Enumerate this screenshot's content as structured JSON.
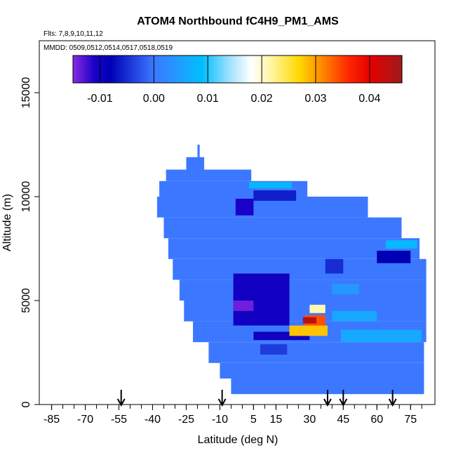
{
  "chart_data": {
    "type": "heatmap",
    "title": "ATOM4 Northbound fC4H9_PM1_AMS",
    "annotations": [
      "Flts: 7,8,9,10,11,12",
      "MMDD: 0509,0512,0514,0517,0518,0519"
    ],
    "xlabel": "Latitude (deg N)",
    "ylabel": "Altitude (m)",
    "xlim": [
      -88,
      84
    ],
    "ylim": [
      0,
      17500
    ],
    "x_ticks": [
      -85,
      -70,
      -55,
      -40,
      -25,
      -10,
      5,
      15,
      30,
      45,
      60,
      75
    ],
    "y_ticks": [
      0,
      5000,
      10000,
      15000
    ],
    "colorbar": {
      "range": [
        -0.015,
        0.046
      ],
      "ticks": [
        -0.01,
        0.0,
        0.01,
        0.02,
        0.03,
        0.04
      ],
      "tick_labels": [
        "-0.01",
        "0.00",
        "0.01",
        "0.02",
        "0.03",
        "0.04"
      ],
      "stops": [
        {
          "value": -0.015,
          "color": "#8a2be2"
        },
        {
          "value": -0.011,
          "color": "#1a00c8"
        },
        {
          "value": -0.008,
          "color": "#0000b4"
        },
        {
          "value": -0.004,
          "color": "#1e3cdc"
        },
        {
          "value": 0.0,
          "color": "#3c78ff"
        },
        {
          "value": 0.005,
          "color": "#1ea0ff"
        },
        {
          "value": 0.009,
          "color": "#00bfff"
        },
        {
          "value": 0.014,
          "color": "#a0e0ff"
        },
        {
          "value": 0.018,
          "color": "#ffffff"
        },
        {
          "value": 0.022,
          "color": "#fff59a"
        },
        {
          "value": 0.027,
          "color": "#ffd700"
        },
        {
          "value": 0.031,
          "color": "#ff8c00"
        },
        {
          "value": 0.036,
          "color": "#ff2800"
        },
        {
          "value": 0.04,
          "color": "#e60000"
        },
        {
          "value": 0.046,
          "color": "#a01a1a"
        }
      ]
    },
    "background_value": 0.0,
    "coverage": [
      {
        "alt": 1000,
        "lat_min": -5,
        "lat_max": 81
      },
      {
        "alt": 1500,
        "lat_min": -10,
        "lat_max": 81
      },
      {
        "alt": 2500,
        "lat_min": -15,
        "lat_max": 81
      },
      {
        "alt": 3500,
        "lat_min": -22,
        "lat_max": 82
      },
      {
        "alt": 4500,
        "lat_min": -26,
        "lat_max": 82
      },
      {
        "alt": 5500,
        "lat_min": -28,
        "lat_max": 82
      },
      {
        "alt": 6500,
        "lat_min": -31,
        "lat_max": 82
      },
      {
        "alt": 7500,
        "lat_min": -33,
        "lat_max": 79
      },
      {
        "alt": 8500,
        "lat_min": -35,
        "lat_max": 71
      },
      {
        "alt": 9500,
        "lat_min": -38,
        "lat_max": 56
      },
      {
        "alt": 10500,
        "lat_min": -37,
        "lat_max": 29
      },
      {
        "alt": 11000,
        "lat_min": -34,
        "lat_max": 4
      },
      {
        "alt": 11600,
        "lat_min": -25,
        "lat_max": -17
      },
      {
        "alt": 12200,
        "lat_min": -20,
        "lat_max": -19
      }
    ],
    "features": [
      {
        "lat_min": -4,
        "lat_max": 21,
        "alt_min": 3800,
        "alt_max": 6300,
        "value": -0.01
      },
      {
        "lat_min": -4,
        "lat_max": 5,
        "alt_min": 4500,
        "alt_max": 5000,
        "value": -0.014
      },
      {
        "lat_min": 5,
        "lat_max": 30,
        "alt_min": 3100,
        "alt_max": 3500,
        "value": -0.01
      },
      {
        "lat_min": 21,
        "lat_max": 38,
        "alt_min": 3300,
        "alt_max": 3800,
        "value": 0.028
      },
      {
        "lat_min": 28,
        "lat_max": 37,
        "alt_min": 3800,
        "alt_max": 4300,
        "value": 0.034
      },
      {
        "lat_min": 27,
        "lat_max": 33,
        "alt_min": 3900,
        "alt_max": 4200,
        "value": 0.044
      },
      {
        "lat_min": 30,
        "lat_max": 37,
        "alt_min": 4400,
        "alt_max": 4800,
        "value": 0.021
      },
      {
        "lat_min": 37,
        "lat_max": 45,
        "alt_min": 6300,
        "alt_max": 7000,
        "value": -0.005
      },
      {
        "lat_min": -3,
        "lat_max": 5,
        "alt_min": 9100,
        "alt_max": 9900,
        "value": -0.011
      },
      {
        "lat_min": 5,
        "lat_max": 24,
        "alt_min": 9800,
        "alt_max": 10300,
        "value": -0.006
      },
      {
        "lat_min": 3,
        "lat_max": 22,
        "alt_min": 10400,
        "alt_max": 10700,
        "value": 0.008
      },
      {
        "lat_min": 60,
        "lat_max": 75,
        "alt_min": 6800,
        "alt_max": 7400,
        "value": -0.008
      },
      {
        "lat_min": 64,
        "lat_max": 78,
        "alt_min": 7500,
        "alt_max": 7900,
        "value": 0.008
      },
      {
        "lat_min": 44,
        "lat_max": 80,
        "alt_min": 3000,
        "alt_max": 3600,
        "value": 0.006
      },
      {
        "lat_min": 40,
        "lat_max": 60,
        "alt_min": 4000,
        "alt_max": 4500,
        "value": 0.006
      },
      {
        "lat_min": 40,
        "lat_max": 52,
        "alt_min": 5300,
        "alt_max": 5800,
        "value": 0.004
      },
      {
        "lat_min": 8,
        "lat_max": 20,
        "alt_min": 2400,
        "alt_max": 2900,
        "value": -0.004
      }
    ],
    "markers_lat": [
      -54,
      -9,
      38,
      45,
      67
    ]
  }
}
